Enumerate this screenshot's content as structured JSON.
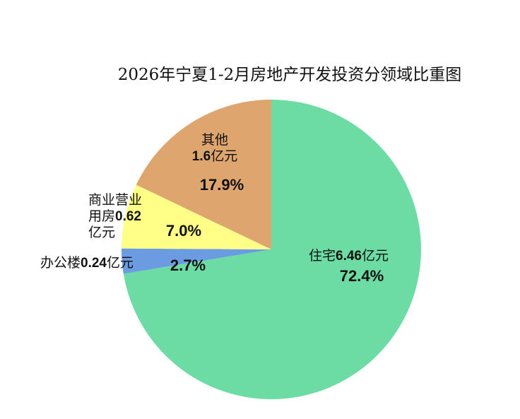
{
  "chart_data": {
    "type": "pie",
    "title": "2026年宁夏1-2月房地产开发投资分领域比重图",
    "categories": [
      "住宅",
      "办公楼",
      "商业营业用房",
      "其他"
    ],
    "amounts": [
      6.46,
      0.24,
      0.62,
      1.6
    ],
    "unit": "亿元",
    "values": [
      72.4,
      2.7,
      7.0,
      17.9
    ],
    "value_labels": [
      "72.4%",
      "2.7%",
      "7.0%",
      "17.9%"
    ],
    "colors": [
      "#6ddca4",
      "#6b9be0",
      "#ffff88",
      "#dea56e"
    ]
  }
}
